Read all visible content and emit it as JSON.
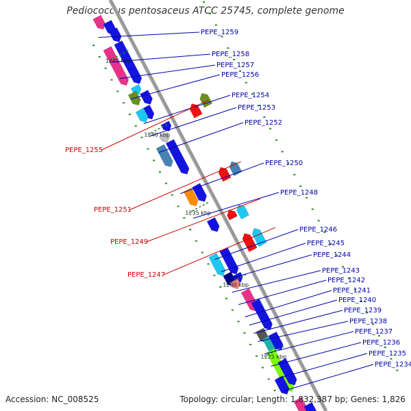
{
  "title": "Pediococcus pentosaceus ATCC 25745, complete genome",
  "footer": {
    "accession": "Accession: NC_008525",
    "topology": "Topology: circular; Length: 1,832,387 bp; Genes: 1,826"
  },
  "colors": {
    "backbone": "#999999",
    "label_plus": "#0000aa",
    "label_minus": "#cc0000",
    "tick": "#228b22",
    "blue": "#1414e0",
    "magenta": "#e8328a",
    "cyan": "#1cc8f0",
    "olive": "#6b8e23",
    "steelblue": "#4682b4",
    "red": "#ee1111",
    "orange": "#ff8c00",
    "navy": "#000088",
    "salmon": "#f08080",
    "gray": "#555555",
    "silver": "#c0c0c0",
    "teal": "#20b2aa",
    "lime": "#7cfc00"
  },
  "kbp_ticks": [
    {
      "label": "1245 kbp"
    },
    {
      "label": "1240 kbp"
    },
    {
      "label": "1235 kbp"
    },
    {
      "label": "1230 kbp"
    },
    {
      "label": "1225 kbp"
    }
  ],
  "genes_plus": [
    {
      "label": "PEPE_1259"
    },
    {
      "label": "PEPE_1258"
    },
    {
      "label": "PEPE_1257"
    },
    {
      "label": "PEPE_1256"
    },
    {
      "label": "PEPE_1254"
    },
    {
      "label": "PEPE_1253"
    },
    {
      "label": "PEPE_1252"
    },
    {
      "label": "PEPE_1250"
    },
    {
      "label": "PEPE_1248"
    },
    {
      "label": "PEPE_1246"
    },
    {
      "label": "PEPE_1245"
    },
    {
      "label": "PEPE_1244"
    },
    {
      "label": "PEPE_1243"
    },
    {
      "label": "PEPE_1242"
    },
    {
      "label": "PEPE_1241"
    },
    {
      "label": "PEPE_1240"
    },
    {
      "label": "PEPE_1239"
    },
    {
      "label": "PEPE_1238"
    },
    {
      "label": "PEPE_1237"
    },
    {
      "label": "PEPE_1236"
    },
    {
      "label": "PEPE_1235"
    },
    {
      "label": "PEPE_1234"
    }
  ],
  "genes_minus": [
    {
      "label": "PEPE_1255"
    },
    {
      "label": "PEPE_1251"
    },
    {
      "label": "PEPE_1249"
    },
    {
      "label": "PEPE_1247"
    }
  ]
}
